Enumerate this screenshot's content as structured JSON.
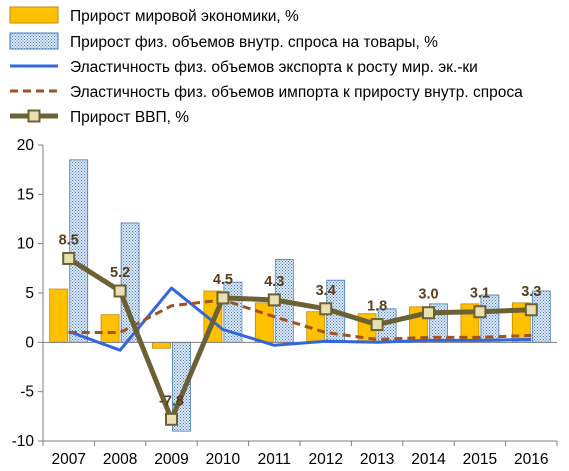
{
  "colors": {
    "world_growth": "#ffc000",
    "world_growth_edge": "#c08a00",
    "demand": "#c6d9f1",
    "demand_edge": "#4a7ebb",
    "export_elasticity": "#3366dd",
    "import_elasticity": "#a0521f",
    "gdp": "#6b6135",
    "gdp_marker_fill": "#e8e0b0",
    "gdp_label": "#5a3e1b",
    "axis": "#7f7f7f"
  },
  "chart_data": {
    "type": "bar",
    "categories": [
      "2007",
      "2008",
      "2009",
      "2010",
      "2011",
      "2012",
      "2013",
      "2014",
      "2015",
      "2016"
    ],
    "ylim": [
      -10,
      20
    ],
    "yticks": [
      "-10",
      "-5",
      "0",
      "5",
      "10",
      "15",
      "20"
    ],
    "grid": false,
    "legend_position": "top",
    "series": [
      {
        "name": "Прирост мировой экономики, %",
        "type": "bar",
        "values": [
          5.4,
          2.8,
          -0.6,
          5.2,
          4.0,
          3.1,
          2.9,
          3.6,
          3.9,
          4.0
        ]
      },
      {
        "name": "Прирост физ. объемов  внутр. спроса на товары, %",
        "type": "bar",
        "values": [
          18.5,
          12.1,
          -9.0,
          6.1,
          8.4,
          6.3,
          3.4,
          3.9,
          4.8,
          5.2
        ]
      },
      {
        "name": "Эластичность физ. объемов экспорта к росту мир. эк.-ки",
        "type": "line",
        "values": [
          1.1,
          -0.8,
          5.5,
          1.3,
          -0.3,
          0.1,
          0.0,
          0.2,
          0.2,
          0.3
        ]
      },
      {
        "name": "Эластичность физ. объемов импорта  к приросту внутр. спроса",
        "type": "line",
        "values": [
          1.0,
          1.0,
          3.7,
          4.3,
          2.6,
          1.0,
          0.3,
          0.5,
          0.5,
          0.7
        ]
      },
      {
        "name": "Прирост ВВП, %",
        "type": "line",
        "values": [
          8.5,
          5.2,
          -7.8,
          4.5,
          4.3,
          3.4,
          1.8,
          3.0,
          3.1,
          3.3
        ],
        "labels": [
          "8.5",
          "5.2",
          "-7.8",
          "4.5",
          "4.3",
          "3.4",
          "1.8",
          "3.0",
          "3.1",
          "3.3"
        ]
      }
    ]
  }
}
